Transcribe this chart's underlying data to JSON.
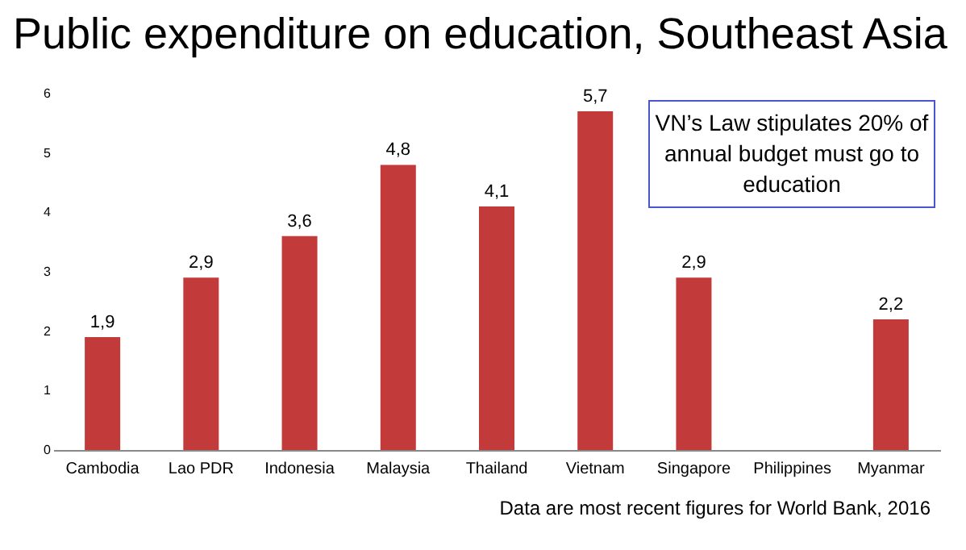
{
  "chart_data": {
    "type": "bar",
    "title": "Public expenditure on education, Southeast Asia",
    "categories": [
      "Cambodia",
      "Lao PDR",
      "Indonesia",
      "Malaysia",
      "Thailand",
      "Vietnam",
      "Singapore",
      "Philippines",
      "Myanmar"
    ],
    "values": [
      1.9,
      2.9,
      3.6,
      4.8,
      4.1,
      5.7,
      2.9,
      null,
      2.2
    ],
    "value_labels": [
      "1,9",
      "2,9",
      "3,6",
      "4,8",
      "4,1",
      "5,7",
      "2,9",
      null,
      "2,2"
    ],
    "color": "#c23b3a",
    "ylim": [
      0,
      6
    ],
    "yticks": [
      0,
      1,
      2,
      3,
      4,
      5,
      6
    ],
    "grid": false,
    "annotations": [
      "VN’s Law stipulates 20% of annual budget must go to education",
      "Data are most recent figures for World Bank, 2016"
    ]
  }
}
